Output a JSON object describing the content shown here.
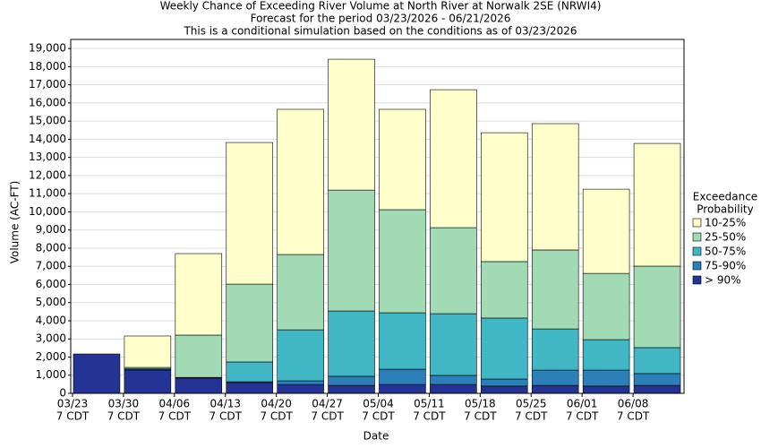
{
  "chart_data": {
    "type": "stacked_bar",
    "title": "Weekly Chance of Exceeding River Volume at North River at Norwalk 2SE (NRWI4)",
    "subtitle": "Forecast for the period 03/23/2026 - 06/21/2026",
    "note": "This is a conditional simulation based on the conditions as of 03/23/2026",
    "x_label": "Date",
    "y_label": "Volume (AC-FT)",
    "legend_title": [
      "Exceedance",
      "Probability"
    ],
    "categories": [
      "03/23",
      "03/30",
      "04/06",
      "04/13",
      "04/20",
      "04/27",
      "05/04",
      "05/11",
      "05/18",
      "05/25",
      "06/01",
      "06/08"
    ],
    "category_sublabels": [
      "7 CDT",
      "7 CDT",
      "7 CDT",
      "7 CDT",
      "7 CDT",
      "7 CDT",
      "7 CDT",
      "7 CDT",
      "7 CDT",
      "7 CDT",
      "7 CDT",
      "7 CDT"
    ],
    "series": [
      {
        "name": "10-25%",
        "color": "#ffffcc",
        "values": [
          0,
          1730,
          4490,
          7800,
          8000,
          7210,
          5530,
          7600,
          7100,
          6960,
          4640,
          6760
        ]
      },
      {
        "name": "25-50%",
        "color": "#a1dab4",
        "values": [
          0,
          80,
          2330,
          4290,
          4150,
          6660,
          5680,
          4740,
          3110,
          4350,
          3650,
          4490
        ]
      },
      {
        "name": "50-75%",
        "color": "#41b6c4",
        "values": [
          0,
          20,
          20,
          1090,
          2810,
          3600,
          3110,
          3400,
          3360,
          2270,
          1680,
          1430
        ]
      },
      {
        "name": "75-90%",
        "color": "#2c7fb8",
        "values": [
          0,
          50,
          20,
          50,
          200,
          500,
          840,
          500,
          390,
          840,
          880,
          650
        ]
      },
      {
        "name": "> 90%",
        "color": "#253494",
        "values": [
          2170,
          1280,
          840,
          590,
          490,
          440,
          490,
          490,
          400,
          440,
          400,
          440
        ]
      }
    ],
    "ylim": [
      0,
      19500
    ],
    "yticks": [
      0,
      {
        "value": 1000,
        "label": "1,000"
      },
      {
        "value": 2000,
        "label": "2,000"
      },
      {
        "value": 3000,
        "label": "3,000"
      },
      {
        "value": 4000,
        "label": "4,000"
      },
      {
        "value": 5000,
        "label": "5,000"
      },
      {
        "value": 6000,
        "label": "6,000"
      },
      {
        "value": 7000,
        "label": "7,000"
      },
      {
        "value": 8000,
        "label": "8,000"
      },
      {
        "value": 9000,
        "label": "9,000"
      },
      {
        "value": 10000,
        "label": "10,000"
      },
      {
        "value": 11000,
        "label": "11,000"
      },
      {
        "value": 12000,
        "label": "12,000"
      },
      {
        "value": 13000,
        "label": "13,000"
      },
      {
        "value": 14000,
        "label": "14,000"
      },
      {
        "value": 15000,
        "label": "15,000"
      },
      {
        "value": 16000,
        "label": "16,000"
      },
      {
        "value": 17000,
        "label": "17,000"
      },
      {
        "value": 18000,
        "label": "18,000"
      },
      {
        "value": 19000,
        "label": "19,000"
      }
    ],
    "grid": true
  }
}
